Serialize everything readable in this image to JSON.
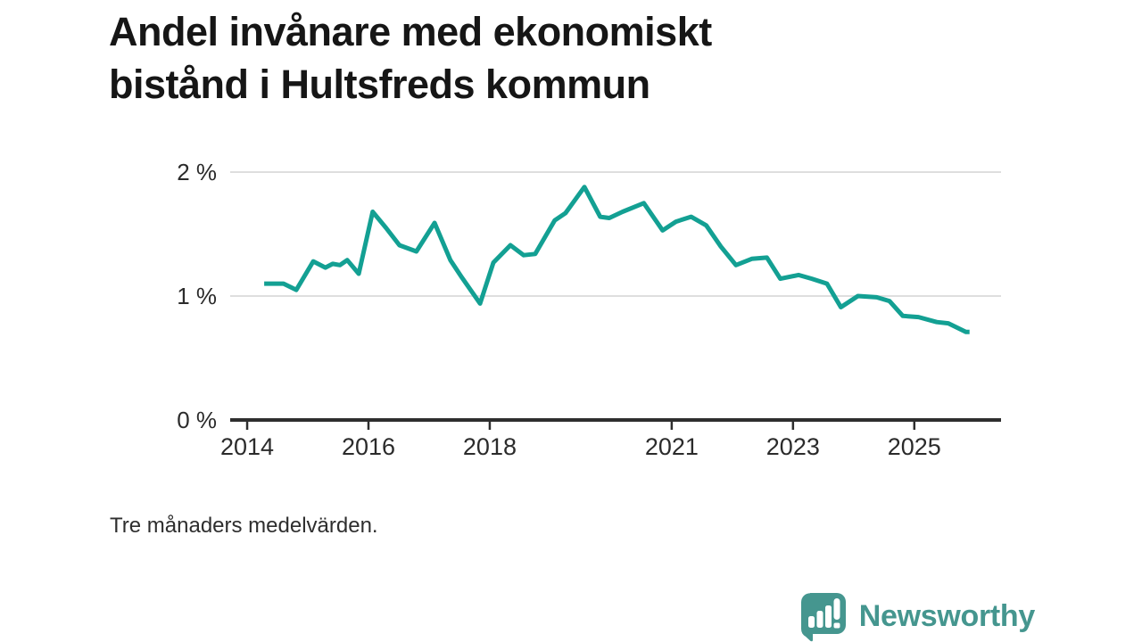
{
  "title": {
    "line1": "Andel invånare med ekonomiskt",
    "line2": "bistånd i Hultsfreds kommun"
  },
  "footnote": "Tre månaders medelvärden.",
  "branding": {
    "name": "Newsworthy"
  },
  "colors": {
    "line": "#13A093",
    "grid": "#dedede",
    "axis": "#2e2e2e",
    "tick_text": "#2b2b2b",
    "title_text": "#161616",
    "footnote_text": "#2e2e2e",
    "brand": "#45968F"
  },
  "chart_data": {
    "type": "line",
    "title": "Andel invånare med ekonomiskt bistånd i Hultsfreds kommun",
    "subtitle": "Tre månaders medelvärden.",
    "xlabel": "",
    "ylabel": "",
    "unit": "%",
    "grid": "horizontal-only",
    "legend": "none",
    "xlim": [
      2013.72,
      2026.43
    ],
    "ylim": [
      0,
      2.36
    ],
    "x_ticks": [
      {
        "value": 2014,
        "label": "2014"
      },
      {
        "value": 2016,
        "label": "2016"
      },
      {
        "value": 2018,
        "label": "2018"
      },
      {
        "value": 2021,
        "label": "2021"
      },
      {
        "value": 2023,
        "label": "2023"
      },
      {
        "value": 2025,
        "label": "2025"
      }
    ],
    "y_ticks": [
      {
        "value": 0,
        "label": "0 %"
      },
      {
        "value": 1,
        "label": "1 %"
      },
      {
        "value": 2,
        "label": "2 %"
      }
    ],
    "series": [
      {
        "name": "Andel invånare med ekonomiskt bistånd",
        "points": [
          [
            2014.28,
            1.1
          ],
          [
            2014.6,
            1.1
          ],
          [
            2014.81,
            1.05
          ],
          [
            2015.09,
            1.28
          ],
          [
            2015.29,
            1.23
          ],
          [
            2015.41,
            1.26
          ],
          [
            2015.53,
            1.25
          ],
          [
            2015.65,
            1.29
          ],
          [
            2015.84,
            1.18
          ],
          [
            2016.07,
            1.68
          ],
          [
            2016.29,
            1.55
          ],
          [
            2016.51,
            1.41
          ],
          [
            2016.79,
            1.36
          ],
          [
            2017.09,
            1.59
          ],
          [
            2017.35,
            1.29
          ],
          [
            2017.54,
            1.15
          ],
          [
            2017.84,
            0.94
          ],
          [
            2018.06,
            1.27
          ],
          [
            2018.34,
            1.41
          ],
          [
            2018.56,
            1.33
          ],
          [
            2018.75,
            1.34
          ],
          [
            2019.07,
            1.61
          ],
          [
            2019.25,
            1.67
          ],
          [
            2019.56,
            1.88
          ],
          [
            2019.82,
            1.64
          ],
          [
            2019.97,
            1.63
          ],
          [
            2020.19,
            1.68
          ],
          [
            2020.54,
            1.75
          ],
          [
            2020.85,
            1.53
          ],
          [
            2021.07,
            1.6
          ],
          [
            2021.32,
            1.64
          ],
          [
            2021.57,
            1.57
          ],
          [
            2021.81,
            1.4
          ],
          [
            2022.06,
            1.25
          ],
          [
            2022.32,
            1.3
          ],
          [
            2022.57,
            1.31
          ],
          [
            2022.79,
            1.14
          ],
          [
            2023.09,
            1.17
          ],
          [
            2023.31,
            1.14
          ],
          [
            2023.56,
            1.1
          ],
          [
            2023.79,
            0.91
          ],
          [
            2024.07,
            1.0
          ],
          [
            2024.38,
            0.99
          ],
          [
            2024.59,
            0.96
          ],
          [
            2024.81,
            0.84
          ],
          [
            2025.07,
            0.83
          ],
          [
            2025.37,
            0.79
          ],
          [
            2025.56,
            0.78
          ],
          [
            2025.85,
            0.71
          ],
          [
            2025.91,
            0.71
          ]
        ]
      }
    ]
  }
}
